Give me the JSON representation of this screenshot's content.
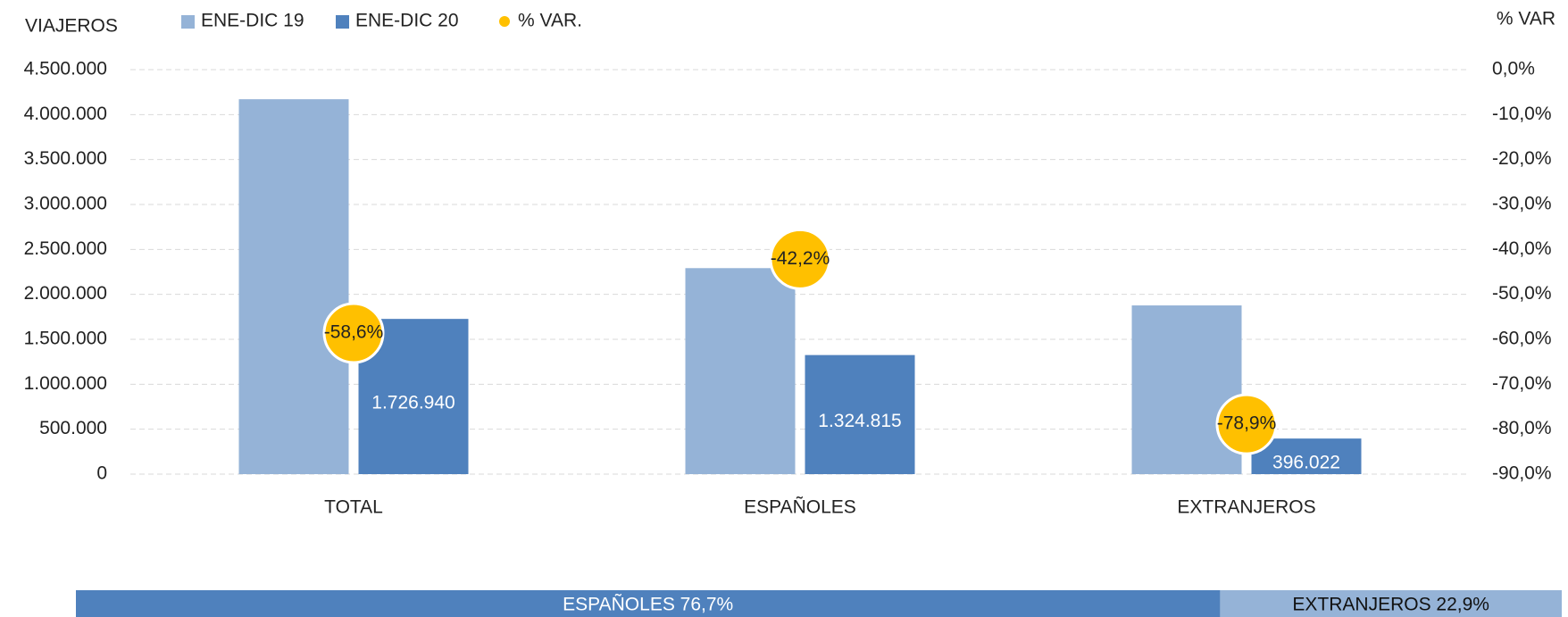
{
  "chart_data": {
    "type": "bar",
    "y_label": "VIAJEROS",
    "y2_label": "% VAR",
    "categories": [
      "TOTAL",
      "ESPAÑOLES",
      "EXTRANJEROS"
    ],
    "series": [
      {
        "name": "ENE-DIC 19",
        "color": "#95b3d7",
        "values": [
          4171000,
          2292000,
          1877000
        ]
      },
      {
        "name": "ENE-DIC 20",
        "color": "#4f81bd",
        "values": [
          1726940,
          1324815,
          396022
        ],
        "value_labels": [
          "1.726.940",
          "1.324.815",
          "396.022"
        ]
      },
      {
        "name": "% VAR.",
        "color": "#ffc000",
        "axis": "y2",
        "values": [
          -58.6,
          -42.2,
          -78.9
        ],
        "value_labels": [
          "-58,6%",
          "-42,2%",
          "-78,9%"
        ]
      }
    ],
    "ylim": [
      0,
      4500000
    ],
    "yticks": [
      0,
      {
        "value": 500000,
        "label": "500.000"
      },
      {
        "value": 1000000,
        "label": "1.000.000"
      },
      {
        "value": 1500000,
        "label": "1.500.000"
      },
      {
        "value": 2000000,
        "label": "2.000.000"
      },
      {
        "value": 2500000,
        "label": "2.500.000"
      },
      {
        "value": 3000000,
        "label": "3.000.000"
      },
      {
        "value": 3500000,
        "label": "3.500.000"
      },
      {
        "value": 4000000,
        "label": "4.000.000"
      },
      {
        "value": 4500000,
        "label": "4.500.000"
      }
    ],
    "y2lim": [
      -90,
      0
    ],
    "y2ticks": [
      {
        "value": -90,
        "label": "-90,0%"
      },
      {
        "value": -80,
        "label": "-80,0%"
      },
      {
        "value": -70,
        "label": "-70,0%"
      },
      {
        "value": -60,
        "label": "-60,0%"
      },
      {
        "value": -50,
        "label": "-50,0%"
      },
      {
        "value": -40,
        "label": "-40,0%"
      },
      {
        "value": -30,
        "label": "-30,0%"
      },
      {
        "value": -20,
        "label": "-20,0%"
      },
      {
        "value": -10,
        "label": "-10,0%"
      },
      {
        "value": 0,
        "label": "0,0%"
      }
    ],
    "grid": true,
    "share_bar": [
      {
        "label": "ESPAÑOLES 76,7%",
        "value": 76.7,
        "color": "#4f81bd"
      },
      {
        "label": "EXTRANJEROS 22,9%",
        "value": 22.9,
        "color": "#95b3d7"
      }
    ]
  }
}
